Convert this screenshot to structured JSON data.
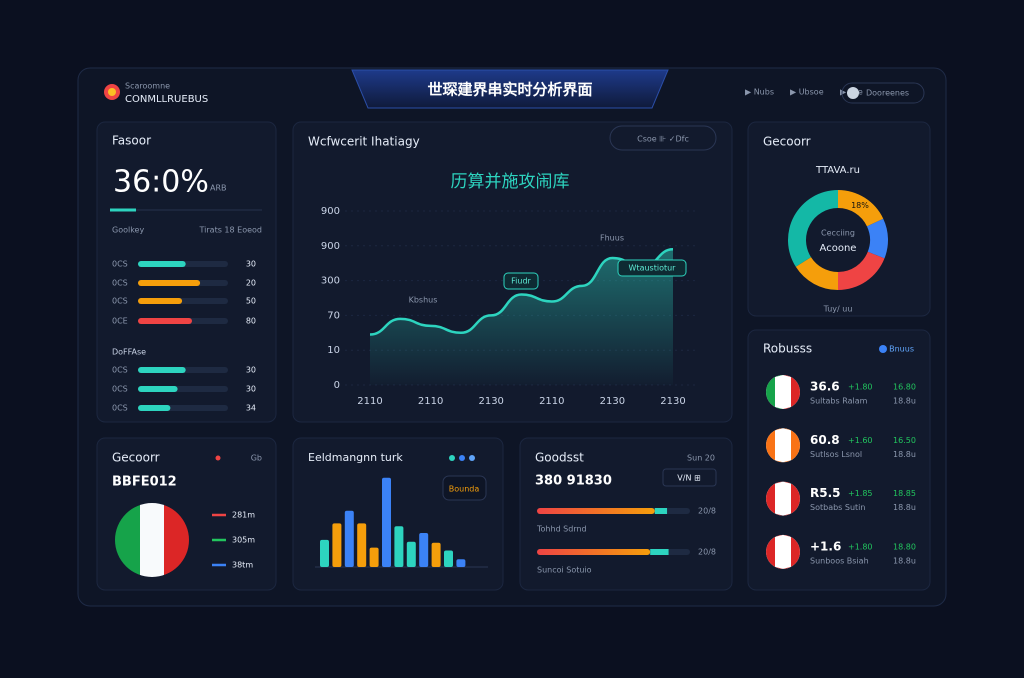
{
  "header": {
    "logo_top": "Scaroomne",
    "logo_text": "CONMLLRUEBUS",
    "title": "世琛建界串实时分析界面",
    "nav": [
      "▶ Nubs",
      "▶ Ubsoe",
      "▶ Loe"
    ],
    "user": "Dooreenes"
  },
  "summary": {
    "title": "Fasoor",
    "kpi": "36:0%",
    "kpi_unit": "ARB",
    "col_left": "Goolkey",
    "col_right": "Tirats 18 Eoeod",
    "group2_title": "DoFFAse",
    "rows": [
      {
        "label": "0CS",
        "figure": "30",
        "progress": 53,
        "color": "#2dd4bf"
      },
      {
        "label": "0CS",
        "figure": "20",
        "progress": 69,
        "color": "#f59e0b"
      },
      {
        "label": "0CS",
        "figure": "50",
        "progress": 49,
        "color": "#f59e0b"
      },
      {
        "label": "0CE",
        "figure": "80",
        "progress": 60,
        "color": "#ef4444"
      }
    ],
    "rows2": [
      {
        "label": "0CS",
        "figure": "30",
        "progress": 53,
        "color": "#2dd4bf"
      },
      {
        "label": "0CS",
        "figure": "30",
        "progress": 44,
        "color": "#2dd4bf"
      },
      {
        "label": "0CS",
        "figure": "34",
        "progress": 36,
        "color": "#2dd4bf"
      }
    ]
  },
  "line_chart": {
    "type": "line",
    "title": "Wcfwcerit Ihatiagy",
    "subtitle": "历算并施攻闹库",
    "legend": "Csoe  ⊪ ✓Dfc",
    "categories": [
      "2110",
      null,
      "2110",
      null,
      "2130",
      null,
      "2110",
      null,
      "2130",
      null,
      "2130"
    ],
    "values": [
      29,
      38,
      34,
      30,
      40,
      52,
      48,
      57,
      73,
      68,
      78
    ],
    "color": "#2dd4bf",
    "ylim": [
      0,
      100
    ],
    "yticks": [
      0,
      {
        "value": 20,
        "label": "10"
      },
      {
        "value": 40,
        "label": "70"
      },
      {
        "value": 60,
        "label": "300"
      },
      {
        "value": 80,
        "label": "900"
      },
      {
        "value": 100,
        "label": "900"
      }
    ],
    "annotations": [
      "Kbshus",
      "Fiudr",
      "Fhuus",
      "Wtaustiotur"
    ]
  },
  "donut": {
    "type": "pie",
    "title": "Gecoorr",
    "top_label": "TTAVA.ru",
    "center": [
      "Cecciing",
      "Acoone"
    ],
    "bottom": "Tuy/ uu",
    "values": [
      18,
      13,
      19,
      16,
      34
    ],
    "value_labels": [
      "18%",
      null,
      null,
      null,
      null
    ],
    "colors": [
      "#f59e0b",
      "#3b82f6",
      "#ef4444",
      "#f59e0b",
      "#14b8a6"
    ]
  },
  "teams": {
    "title": "Robusss",
    "badge": "Bnuus",
    "rows": [
      {
        "flag": [
          "#16a34a",
          "#ffffff",
          "#dc2626"
        ],
        "score": "36.6",
        "delta": "+1.80",
        "extra": "16.80",
        "note": "Sultabs Ralam",
        "note2": "18.8u"
      },
      {
        "flag": [
          "#f97316",
          "#ffffff",
          "#f97316"
        ],
        "score": "60.8",
        "delta": "+1.60",
        "extra": "16.50",
        "note": "Sutlsos Lsnol",
        "note2": "18.8u"
      },
      {
        "flag": [
          "#dc2626",
          "#ffffff",
          "#dc2626"
        ],
        "score": "R5.5",
        "delta": "+1.85",
        "extra": "18.85",
        "note": "Sotbabs Sutin",
        "note2": "18.8u"
      },
      {
        "flag": [
          "#dc2626",
          "#ffffff",
          "#dc2626"
        ],
        "score": "+1.6",
        "delta": "+1.80",
        "extra": "18.80",
        "note": "Sunboos Bsiah",
        "note2": "18.8u"
      }
    ]
  },
  "overview": {
    "title": "Gecoorr",
    "tag": "Gb",
    "code": "BBFE012",
    "legend": [
      {
        "label": "281m",
        "color": "#ef4444"
      },
      {
        "label": "305m",
        "color": "#22c55e"
      },
      {
        "label": "38tm",
        "color": "#3b82f6"
      }
    ]
  },
  "trend": {
    "type": "bar",
    "title": "Eeldmangnn turk",
    "button": "Bounda",
    "ylim": [
      0,
      100
    ],
    "values": [
      28,
      45,
      58,
      45,
      20,
      92,
      42,
      26,
      35,
      25,
      17,
      8
    ],
    "colors": [
      "#2dd4bf",
      "#f59e0b",
      "#3b82f6",
      "#f59e0b",
      "#f59e0b",
      "#3b82f6",
      "#2dd4bf",
      "#2dd4bf",
      "#3b82f6",
      "#f59e0b",
      "#2dd4bf",
      "#3b82f6"
    ]
  },
  "goods": {
    "title": "Goodsst",
    "kpi": "380 91830",
    "tag": "V/N ⊞",
    "side": "Sun 20",
    "bars": [
      {
        "label": "Tohhd Sdrnd",
        "figure": "20/8",
        "parts": [
          77,
          8
        ]
      },
      {
        "label": "Suncoi Sotuio",
        "figure": "20/8",
        "parts": [
          74,
          12
        ]
      }
    ]
  }
}
